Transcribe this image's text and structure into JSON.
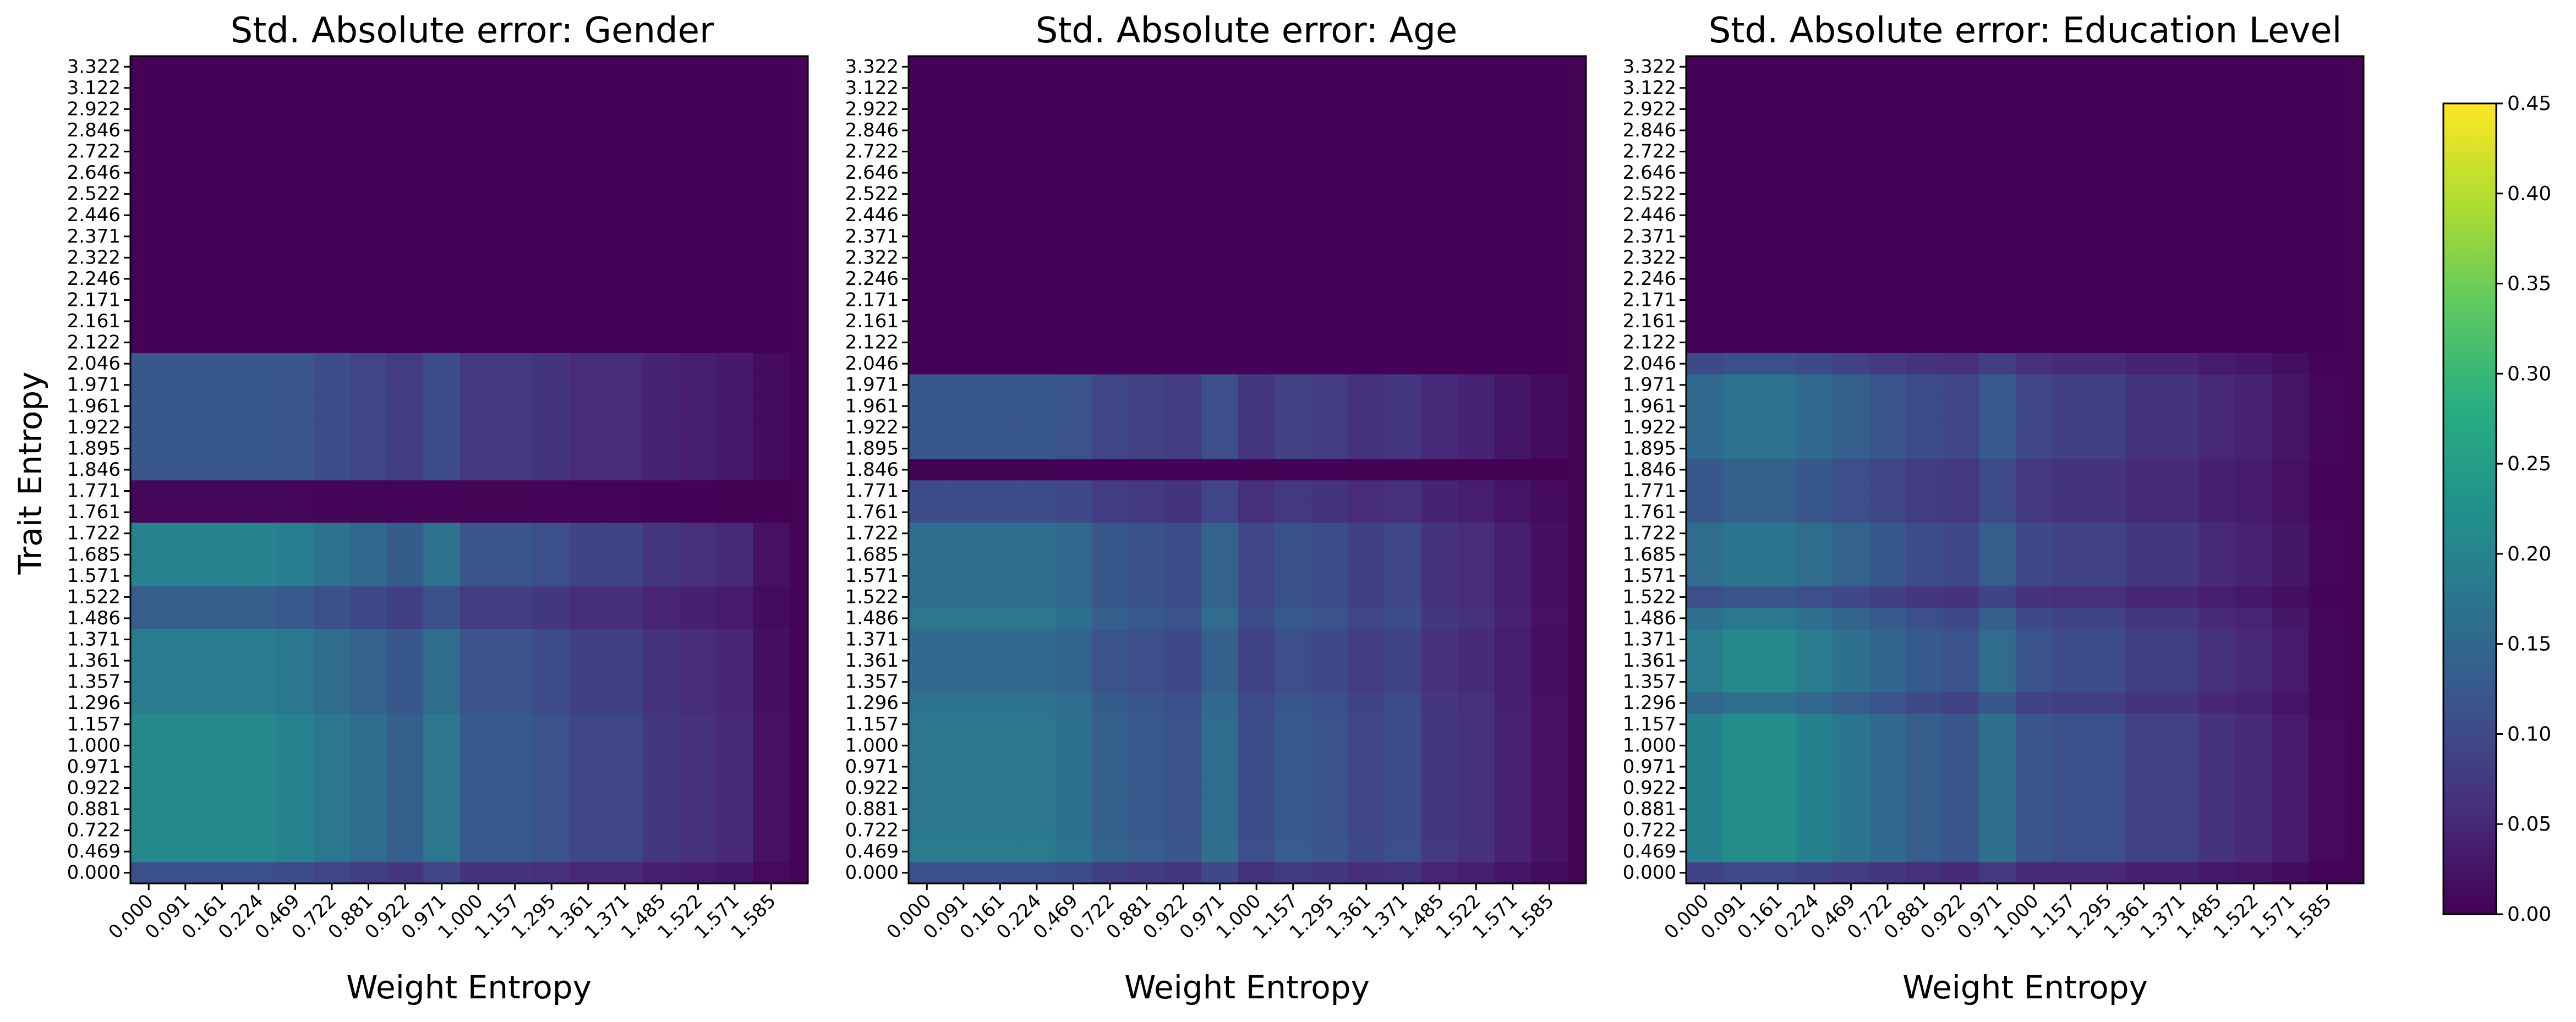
{
  "chart_data": [
    {
      "type": "heatmap",
      "title": "Std. Absolute error: Gender",
      "xlabel": "Weight Entropy",
      "ylabel": "Trait Entropy",
      "x_ticks": [
        "0.000",
        "0.091",
        "0.161",
        "0.224",
        "0.469",
        "0.722",
        "0.881",
        "0.922",
        "0.971",
        "1.000",
        "1.157",
        "1.295",
        "1.361",
        "1.371",
        "1.485",
        "1.522",
        "1.571",
        "1.585"
      ],
      "y_ticks": [
        "3.322",
        "3.122",
        "2.922",
        "2.846",
        "2.722",
        "2.646",
        "2.522",
        "2.446",
        "2.371",
        "2.322",
        "2.246",
        "2.171",
        "2.161",
        "2.122",
        "2.046",
        "1.971",
        "1.961",
        "1.922",
        "1.895",
        "1.846",
        "1.771",
        "1.761",
        "1.722",
        "1.685",
        "1.571",
        "1.522",
        "1.486",
        "1.371",
        "1.361",
        "1.357",
        "1.296",
        "1.157",
        "1.000",
        "0.971",
        "0.922",
        "0.881",
        "0.722",
        "0.469",
        "0.000"
      ],
      "row_weights": [
        0,
        0,
        0,
        0,
        0,
        0,
        0,
        0,
        0,
        0,
        0,
        0,
        0,
        0,
        0.62,
        0.62,
        0.62,
        0.62,
        0.62,
        0.62,
        0.04,
        0.04,
        1.0,
        1.0,
        1.0,
        0.66,
        0.66,
        0.94,
        0.94,
        0.94,
        0.94,
        1.05,
        1.05,
        1.05,
        1.05,
        1.05,
        1.05,
        1.05,
        0.55
      ],
      "col_weights": [
        0.2,
        0.2,
        0.2,
        0.2,
        0.19,
        0.17,
        0.15,
        0.13,
        0.17,
        0.12,
        0.12,
        0.11,
        0.09,
        0.09,
        0.07,
        0.06,
        0.05,
        0.02
      ]
    },
    {
      "type": "heatmap",
      "title": "Std. Absolute error: Age",
      "xlabel": "Weight Entropy",
      "x_ticks": [
        "0.000",
        "0.091",
        "0.161",
        "0.224",
        "0.469",
        "0.722",
        "0.881",
        "0.922",
        "0.971",
        "1.000",
        "1.157",
        "1.295",
        "1.361",
        "1.371",
        "1.485",
        "1.522",
        "1.571",
        "1.585"
      ],
      "y_ticks": [
        "3.322",
        "3.122",
        "2.922",
        "2.846",
        "2.722",
        "2.646",
        "2.522",
        "2.446",
        "2.371",
        "2.322",
        "2.246",
        "2.171",
        "2.161",
        "2.122",
        "2.046",
        "1.971",
        "1.961",
        "1.922",
        "1.895",
        "1.846",
        "1.771",
        "1.761",
        "1.722",
        "1.685",
        "1.571",
        "1.522",
        "1.486",
        "1.371",
        "1.361",
        "1.357",
        "1.296",
        "1.157",
        "1.000",
        "0.971",
        "0.922",
        "0.881",
        "0.722",
        "0.469",
        "0.000"
      ],
      "row_weights": [
        0,
        0,
        0,
        0,
        0,
        0,
        0,
        0,
        0,
        0,
        0,
        0,
        0,
        0,
        0,
        0.72,
        0.72,
        0.72,
        0.72,
        0.02,
        0.62,
        0.62,
        0.95,
        0.95,
        0.95,
        0.95,
        1.05,
        0.9,
        0.9,
        0.9,
        1.0,
        1.05,
        1.05,
        1.05,
        1.05,
        1.05,
        1.05,
        1.1,
        0.65
      ],
      "col_weights": [
        0.17,
        0.17,
        0.17,
        0.17,
        0.16,
        0.13,
        0.12,
        0.11,
        0.15,
        0.1,
        0.12,
        0.11,
        0.09,
        0.1,
        0.07,
        0.06,
        0.04,
        0.02
      ]
    },
    {
      "type": "heatmap",
      "title": "Std. Absolute error: Education Level",
      "xlabel": "Weight Entropy",
      "x_ticks": [
        "0.000",
        "0.091",
        "0.161",
        "0.224",
        "0.469",
        "0.722",
        "0.881",
        "0.922",
        "0.971",
        "1.000",
        "1.157",
        "1.295",
        "1.361",
        "1.371",
        "1.485",
        "1.522",
        "1.571",
        "1.585"
      ],
      "y_ticks": [
        "3.322",
        "3.122",
        "2.922",
        "2.846",
        "2.722",
        "2.646",
        "2.522",
        "2.446",
        "2.371",
        "2.322",
        "2.246",
        "2.171",
        "2.161",
        "2.122",
        "2.046",
        "1.971",
        "1.961",
        "1.922",
        "1.895",
        "1.846",
        "1.771",
        "1.761",
        "1.722",
        "1.685",
        "1.571",
        "1.522",
        "1.486",
        "1.371",
        "1.361",
        "1.357",
        "1.296",
        "1.157",
        "1.000",
        "0.971",
        "0.922",
        "0.881",
        "0.722",
        "0.469",
        "0.000"
      ],
      "row_weights": [
        0,
        0,
        0,
        0,
        0,
        0,
        0,
        0,
        0,
        0,
        0,
        0,
        0,
        0,
        0.55,
        0.85,
        0.85,
        0.85,
        0.85,
        0.68,
        0.68,
        0.68,
        0.88,
        0.88,
        0.88,
        0.6,
        0.9,
        1.05,
        1.05,
        1.05,
        0.82,
        1.1,
        1.1,
        1.1,
        1.1,
        1.1,
        1.1,
        1.1,
        0.5
      ],
      "col_weights": [
        0.18,
        0.2,
        0.2,
        0.18,
        0.16,
        0.14,
        0.12,
        0.11,
        0.15,
        0.11,
        0.1,
        0.1,
        0.08,
        0.08,
        0.06,
        0.05,
        0.03,
        0.01
      ]
    }
  ],
  "colorbar": {
    "vmin": 0.0,
    "vmax": 0.45,
    "ticks": [
      "0.00",
      "0.05",
      "0.10",
      "0.15",
      "0.20",
      "0.25",
      "0.30",
      "0.35",
      "0.40",
      "0.45"
    ],
    "colormap": "viridis"
  }
}
